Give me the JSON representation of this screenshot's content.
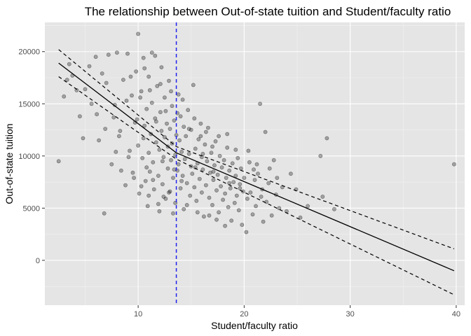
{
  "chart_data": {
    "type": "scatter",
    "title": "The relationship between Out-of-state tuition and Student/faculty ratio",
    "xlabel": "Student/faculty ratio",
    "ylabel": "Out-of-state tuition",
    "xlim": [
      1.2,
      40.8
    ],
    "ylim": [
      -4300,
      22800
    ],
    "x_ticks": [
      10,
      20,
      30,
      40
    ],
    "y_ticks": [
      0,
      5000,
      10000,
      15000,
      20000
    ],
    "x_tick_labels": [
      "10",
      "20",
      "30",
      "40"
    ],
    "y_tick_labels": [
      "0",
      "5000",
      "10000",
      "15000",
      "20000"
    ],
    "grid": true,
    "background": "#e5e5e5",
    "point_color": "#000000",
    "point_alpha": 0.3,
    "vertical_line": {
      "x": 13.6,
      "color": "#2222ee",
      "style": "dashed"
    },
    "fit_line": {
      "color": "#000000",
      "x": [
        2.5,
        13.6,
        39.8
      ],
      "y": [
        18900,
        10300,
        -1000
      ]
    },
    "confidence_band": {
      "upper": {
        "x": [
          2.5,
          13.6,
          39.8
        ],
        "y": [
          20200,
          10900,
          1100
        ]
      },
      "lower": {
        "x": [
          2.5,
          13.6,
          39.8
        ],
        "y": [
          17600,
          9700,
          -3300
        ]
      }
    },
    "points": [
      [
        2.5,
        9500
      ],
      [
        3.0,
        15700
      ],
      [
        3.5,
        18800
      ],
      [
        4.5,
        13800
      ],
      [
        4.8,
        11700
      ],
      [
        5.4,
        18600
      ],
      [
        6.0,
        19500
      ],
      [
        6.3,
        11500
      ],
      [
        6.8,
        4500
      ],
      [
        7.0,
        17000
      ],
      [
        7.2,
        19700
      ],
      [
        7.5,
        9200
      ],
      [
        7.8,
        14900
      ],
      [
        8.0,
        19900
      ],
      [
        8.3,
        12400
      ],
      [
        8.6,
        17300
      ],
      [
        8.8,
        7200
      ],
      [
        9.0,
        19800
      ],
      [
        9.2,
        10500
      ],
      [
        9.4,
        15800
      ],
      [
        9.5,
        8400
      ],
      [
        9.7,
        13200
      ],
      [
        9.8,
        18100
      ],
      [
        10.0,
        11000
      ],
      [
        10.0,
        21700
      ],
      [
        10.1,
        6400
      ],
      [
        10.3,
        16200
      ],
      [
        10.4,
        9800
      ],
      [
        10.5,
        19400
      ],
      [
        10.6,
        12900
      ],
      [
        10.7,
        7600
      ],
      [
        10.8,
        14500
      ],
      [
        10.9,
        5200
      ],
      [
        11.0,
        17600
      ],
      [
        11.0,
        10300
      ],
      [
        11.1,
        8500
      ],
      [
        11.2,
        12100
      ],
      [
        11.3,
        15100
      ],
      [
        11.3,
        19900
      ],
      [
        11.4,
        9400
      ],
      [
        11.5,
        6800
      ],
      [
        11.6,
        13600
      ],
      [
        11.7,
        11300
      ],
      [
        11.8,
        16700
      ],
      [
        11.9,
        8100
      ],
      [
        12.0,
        10600
      ],
      [
        12.0,
        4700
      ],
      [
        12.1,
        14200
      ],
      [
        12.2,
        12400
      ],
      [
        12.2,
        18500
      ],
      [
        12.3,
        7300
      ],
      [
        12.4,
        9900
      ],
      [
        12.5,
        11800
      ],
      [
        12.5,
        15600
      ],
      [
        12.6,
        5900
      ],
      [
        12.7,
        13100
      ],
      [
        12.8,
        8800
      ],
      [
        12.8,
        10900
      ],
      [
        12.9,
        17200
      ],
      [
        13.0,
        12600
      ],
      [
        13.0,
        6600
      ],
      [
        13.1,
        9600
      ],
      [
        13.2,
        14800
      ],
      [
        13.2,
        11200
      ],
      [
        13.3,
        7900
      ],
      [
        13.4,
        13400
      ],
      [
        13.5,
        10100
      ],
      [
        13.5,
        5500
      ],
      [
        13.6,
        12000
      ],
      [
        13.7,
        8600
      ],
      [
        13.8,
        15900
      ],
      [
        13.8,
        9200
      ],
      [
        13.9,
        11500
      ],
      [
        14.0,
        6900
      ],
      [
        14.0,
        13800
      ],
      [
        14.1,
        10400
      ],
      [
        14.2,
        8100
      ],
      [
        14.3,
        12800
      ],
      [
        14.3,
        4900
      ],
      [
        14.4,
        9700
      ],
      [
        14.5,
        11900
      ],
      [
        14.6,
        7400
      ],
      [
        14.7,
        14400
      ],
      [
        14.8,
        10200
      ],
      [
        14.9,
        6200
      ],
      [
        15.0,
        9000
      ],
      [
        15.0,
        12500
      ],
      [
        15.1,
        8300
      ],
      [
        15.2,
        16800
      ],
      [
        15.3,
        7000
      ],
      [
        15.4,
        10700
      ],
      [
        15.5,
        5700
      ],
      [
        15.6,
        9300
      ],
      [
        15.7,
        11600
      ],
      [
        15.8,
        7800
      ],
      [
        15.9,
        13100
      ],
      [
        16.0,
        6500
      ],
      [
        16.0,
        9900
      ],
      [
        16.1,
        8700
      ],
      [
        16.2,
        4200
      ],
      [
        16.3,
        11100
      ],
      [
        16.4,
        7200
      ],
      [
        16.5,
        9500
      ],
      [
        16.6,
        12700
      ],
      [
        16.7,
        6000
      ],
      [
        16.8,
        8400
      ],
      [
        16.9,
        10300
      ],
      [
        17.0,
        5300
      ],
      [
        17.1,
        7700
      ],
      [
        17.2,
        9100
      ],
      [
        17.3,
        11400
      ],
      [
        17.4,
        6700
      ],
      [
        17.5,
        8200
      ],
      [
        17.6,
        4600
      ],
      [
        17.7,
        10000
      ],
      [
        17.8,
        7100
      ],
      [
        17.9,
        8900
      ],
      [
        18.0,
        5800
      ],
      [
        18.1,
        9600
      ],
      [
        18.2,
        6400
      ],
      [
        18.3,
        7900
      ],
      [
        18.4,
        10800
      ],
      [
        18.5,
        5100
      ],
      [
        18.6,
        8600
      ],
      [
        18.7,
        6900
      ],
      [
        18.8,
        3800
      ],
      [
        18.9,
        9300
      ],
      [
        19.0,
        7500
      ],
      [
        19.1,
        5500
      ],
      [
        19.2,
        8100
      ],
      [
        19.3,
        6200
      ],
      [
        19.4,
        9800
      ],
      [
        19.5,
        4800
      ],
      [
        19.6,
        7300
      ],
      [
        19.7,
        8800
      ],
      [
        19.8,
        3400
      ],
      [
        19.9,
        6600
      ],
      [
        20.0,
        7900
      ],
      [
        20.2,
        2700
      ],
      [
        20.3,
        5900
      ],
      [
        20.5,
        9400
      ],
      [
        20.6,
        6500
      ],
      [
        20.8,
        4400
      ],
      [
        21.0,
        7700
      ],
      [
        21.1,
        5200
      ],
      [
        21.3,
        8300
      ],
      [
        21.5,
        15000
      ],
      [
        21.6,
        6100
      ],
      [
        21.8,
        3700
      ],
      [
        22.0,
        12300
      ],
      [
        22.1,
        5600
      ],
      [
        22.3,
        7400
      ],
      [
        22.6,
        4300
      ],
      [
        22.8,
        9600
      ],
      [
        23.0,
        6300
      ],
      [
        23.3,
        5000
      ],
      [
        23.6,
        7000
      ],
      [
        24.0,
        4700
      ],
      [
        24.4,
        8300
      ],
      [
        24.9,
        6800
      ],
      [
        25.3,
        4100
      ],
      [
        26.0,
        5200
      ],
      [
        27.2,
        10000
      ],
      [
        27.4,
        6100
      ],
      [
        27.8,
        11700
      ],
      [
        28.5,
        4900
      ],
      [
        39.8,
        9200
      ],
      [
        3.8,
        17700
      ],
      [
        5.0,
        16400
      ],
      [
        6.6,
        17900
      ],
      [
        7.7,
        13700
      ],
      [
        8.2,
        11900
      ],
      [
        8.9,
        15300
      ],
      [
        9.3,
        17600
      ],
      [
        9.9,
        13500
      ],
      [
        10.2,
        15600
      ],
      [
        10.6,
        18400
      ],
      [
        11.1,
        16300
      ],
      [
        11.6,
        19600
      ],
      [
        12.1,
        16900
      ],
      [
        12.6,
        14300
      ],
      [
        13.1,
        16200
      ],
      [
        13.7,
        14100
      ],
      [
        14.2,
        15400
      ],
      [
        14.8,
        12600
      ],
      [
        15.3,
        13600
      ],
      [
        15.9,
        11900
      ],
      [
        16.4,
        12300
      ],
      [
        17.0,
        10900
      ],
      [
        17.6,
        11900
      ],
      [
        18.4,
        12100
      ],
      [
        19.2,
        10600
      ],
      [
        20.4,
        10500
      ],
      [
        21.2,
        9200
      ],
      [
        22.4,
        8800
      ],
      [
        10.3,
        7100
      ],
      [
        11.0,
        6200
      ],
      [
        11.9,
        5400
      ],
      [
        12.4,
        6100
      ],
      [
        13.3,
        4500
      ],
      [
        9.6,
        7900
      ],
      [
        10.8,
        8900
      ],
      [
        11.4,
        7700
      ],
      [
        12.9,
        6500
      ],
      [
        14.6,
        5300
      ],
      [
        15.6,
        4600
      ],
      [
        16.7,
        4300
      ],
      [
        17.4,
        3900
      ],
      [
        18.2,
        3300
      ],
      [
        9.1,
        9900
      ],
      [
        8.4,
        8600
      ],
      [
        7.9,
        10400
      ],
      [
        6.9,
        12600
      ],
      [
        6.1,
        14000
      ],
      [
        5.6,
        15000
      ],
      [
        4.2,
        16300
      ],
      [
        3.3,
        17300
      ],
      [
        10.5,
        11700
      ],
      [
        11.7,
        13300
      ],
      [
        12.3,
        9500
      ],
      [
        13.4,
        8700
      ],
      [
        14.1,
        7600
      ],
      [
        15.4,
        8900
      ],
      [
        16.1,
        10200
      ],
      [
        17.1,
        8500
      ],
      [
        18.6,
        7400
      ],
      [
        19.6,
        6900
      ],
      [
        20.9,
        8700
      ],
      [
        21.7,
        6800
      ],
      [
        23.1,
        7900
      ]
    ]
  }
}
